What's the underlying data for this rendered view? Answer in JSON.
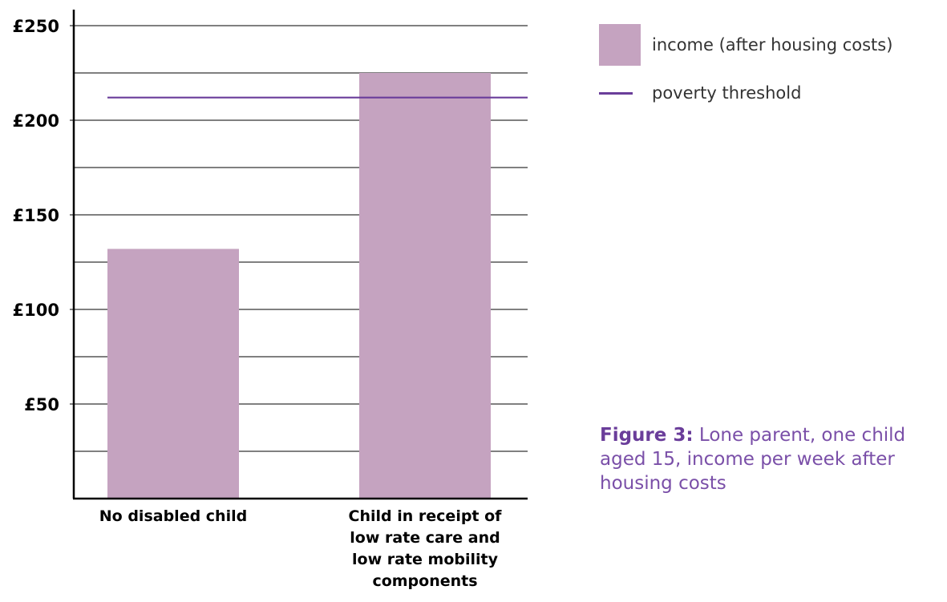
{
  "colors": {
    "bar": "#c5a3c0",
    "threshold": "#6a3d9a",
    "caption_lead": "#6a3d9a",
    "caption_text": "#7a4fa8",
    "axis": "#000000",
    "grid": "#000000"
  },
  "legend": {
    "income_label": "income (after housing costs)",
    "threshold_label": "poverty threshold"
  },
  "caption": {
    "lead": "Figure 3:",
    "text": " Lone parent, one child aged 15, income per week after housing costs"
  },
  "chart_data": {
    "type": "bar",
    "categories": [
      [
        "No disabled child"
      ],
      [
        "Child in receipt of",
        "low rate care and",
        "low rate mobility",
        "components"
      ]
    ],
    "series": [
      {
        "name": "income (after housing costs)",
        "values": [
          132,
          225
        ]
      }
    ],
    "threshold": {
      "name": "poverty threshold",
      "value": 212
    },
    "y_ticks": [
      50,
      100,
      150,
      200,
      250
    ],
    "y_tick_labels": [
      "£50",
      "£100",
      "£150",
      "£200",
      "£250"
    ],
    "grid_step": 25,
    "ylim": [
      0,
      255
    ],
    "grid": true,
    "legend_position": "top-right",
    "title": "",
    "xlabel": "",
    "ylabel": ""
  }
}
